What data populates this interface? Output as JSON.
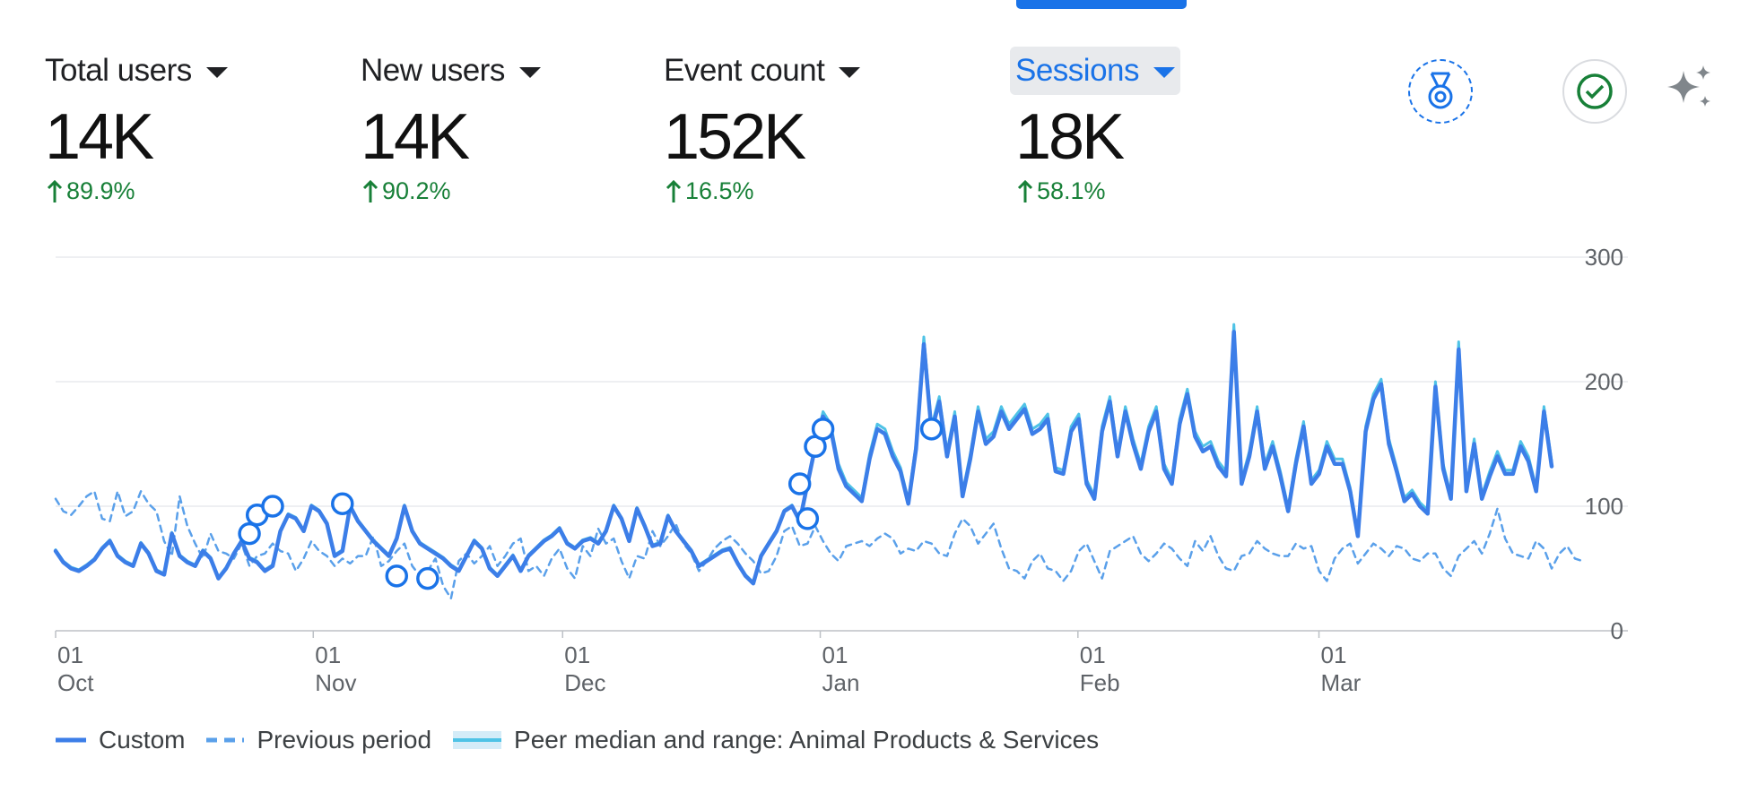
{
  "metrics": [
    {
      "label": "Total users",
      "value": "14K",
      "change": "89.9%"
    },
    {
      "label": "New users",
      "value": "14K",
      "change": "90.2%"
    },
    {
      "label": "Event count",
      "value": "152K",
      "change": "16.5%"
    },
    {
      "label": "Sessions",
      "value": "18K",
      "change": "58.1%"
    }
  ],
  "colors": {
    "custom": "#3c7ee8",
    "previous": "#5aa0ea",
    "peer": "#4fc3e6",
    "up": "#188038",
    "accent": "#1a73e8"
  },
  "icons": [
    "medal-icon",
    "check-circle-icon",
    "sparkle-icon"
  ],
  "legend": {
    "custom": "Custom",
    "previous": "Previous period",
    "peer": "Peer median and range: Animal Products & Services"
  },
  "chart_data": {
    "type": "line",
    "title": "",
    "xlabel": "",
    "ylabel": "",
    "ylim": [
      0,
      300
    ],
    "yticks": [
      "0",
      "100",
      "200",
      "300"
    ],
    "xticks": [
      {
        "day": "01",
        "month": "Oct"
      },
      {
        "day": "01",
        "month": "Nov"
      },
      {
        "day": "01",
        "month": "Dec"
      },
      {
        "day": "01",
        "month": "Jan"
      },
      {
        "day": "01",
        "month": "Feb"
      },
      {
        "day": "01",
        "month": "Mar"
      }
    ],
    "x_start": "2023-10-01",
    "x_end": "2024-03-29",
    "grid": true,
    "legend_position": "bottom-left",
    "series": [
      {
        "name": "Custom",
        "style": "solid",
        "values": [
          64,
          55,
          50,
          48,
          52,
          57,
          66,
          72,
          60,
          55,
          52,
          70,
          62,
          48,
          45,
          78,
          60,
          55,
          52,
          64,
          58,
          42,
          50,
          62,
          72,
          58,
          55,
          48,
          52,
          80,
          93,
          90,
          80,
          100,
          96,
          86,
          60,
          64,
          100,
          88,
          80,
          72,
          66,
          60,
          74,
          100,
          80,
          70,
          66,
          62,
          58,
          52,
          48,
          60,
          72,
          66,
          50,
          44,
          52,
          60,
          48,
          60,
          66,
          72,
          76,
          82,
          70,
          66,
          72,
          74,
          70,
          80,
          100,
          90,
          72,
          98,
          84,
          68,
          70,
          92,
          80,
          72,
          64,
          52,
          56,
          60,
          64,
          66,
          54,
          44,
          38,
          60,
          70,
          80,
          96,
          100,
          88,
          118,
          148,
          172,
          162,
          130,
          116,
          110,
          104,
          138,
          162,
          158,
          140,
          128,
          102,
          146,
          230,
          160,
          184,
          140,
          172,
          108,
          138,
          176,
          150,
          156,
          176,
          162,
          170,
          178,
          158,
          162,
          170,
          128,
          126,
          160,
          170,
          118,
          106,
          160,
          184,
          140,
          176,
          150,
          130,
          160,
          176,
          130,
          118,
          166,
          190,
          156,
          144,
          148,
          132,
          124,
          240,
          118,
          140,
          176,
          130,
          148,
          124,
          96,
          134,
          164,
          118,
          126,
          148,
          134,
          134,
          112,
          76,
          160,
          186,
          198,
          150,
          128,
          104,
          110,
          100,
          94,
          196,
          130,
          106,
          226,
          112,
          150,
          106,
          124,
          140,
          126,
          126,
          148,
          136,
          112,
          176,
          132
        ],
        "point_markers": [
          [
            25,
            78
          ],
          [
            26,
            93
          ],
          [
            28,
            100
          ],
          [
            37,
            102
          ],
          [
            44,
            44
          ],
          [
            48,
            42
          ],
          [
            96,
            118
          ],
          [
            97,
            90
          ],
          [
            98,
            148
          ],
          [
            99,
            162
          ],
          [
            113,
            162
          ]
        ]
      },
      {
        "name": "Previous period",
        "style": "dashed",
        "values": [
          106,
          96,
          93,
          100,
          108,
          112,
          90,
          88,
          112,
          92,
          96,
          112,
          102,
          96,
          72,
          60,
          108,
          84,
          70,
          58,
          78,
          64,
          62,
          58,
          70,
          52,
          60,
          62,
          70,
          64,
          62,
          48,
          58,
          72,
          64,
          60,
          52,
          58,
          54,
          60,
          60,
          76,
          52,
          56,
          64,
          70,
          52,
          44,
          48,
          58,
          36,
          26,
          56,
          62,
          54,
          60,
          68,
          52,
          60,
          70,
          74,
          48,
          52,
          44,
          58,
          66,
          50,
          42,
          68,
          60,
          82,
          70,
          74,
          56,
          42,
          60,
          58,
          80,
          68,
          76,
          86,
          70,
          62,
          48,
          56,
          66,
          72,
          76,
          70,
          62,
          56,
          46,
          48,
          60,
          80,
          84,
          68,
          70,
          84,
          72,
          62,
          56,
          68,
          70,
          72,
          68,
          74,
          78,
          74,
          62,
          66,
          64,
          72,
          70,
          62,
          60,
          78,
          90,
          84,
          70,
          78,
          86,
          66,
          50,
          48,
          42,
          56,
          62,
          50,
          48,
          40,
          48,
          64,
          70,
          56,
          42,
          64,
          68,
          72,
          76,
          62,
          56,
          62,
          70,
          66,
          58,
          52,
          72,
          64,
          76,
          60,
          50,
          48,
          60,
          62,
          72,
          66,
          62,
          60,
          60,
          70,
          66,
          68,
          48,
          40,
          58,
          66,
          70,
          54,
          62,
          70,
          66,
          60,
          68,
          66,
          58,
          56,
          62,
          62,
          50,
          44,
          60,
          66,
          72,
          62,
          78,
          98,
          74,
          62,
          60,
          58,
          72,
          66,
          50,
          62,
          68,
          58,
          56
        ],
        "point_markers": []
      },
      {
        "name": "Peer median and range: Animal Products & Services",
        "style": "solid",
        "values": [
          65,
          56,
          51,
          49,
          53,
          58,
          67,
          73,
          61,
          56,
          53,
          71,
          63,
          49,
          46,
          79,
          61,
          56,
          53,
          65,
          59,
          43,
          51,
          63,
          73,
          59,
          56,
          49,
          53,
          81,
          94,
          91,
          81,
          101,
          97,
          87,
          61,
          65,
          101,
          89,
          81,
          73,
          67,
          61,
          75,
          101,
          81,
          71,
          67,
          63,
          59,
          53,
          49,
          61,
          73,
          67,
          51,
          45,
          53,
          61,
          49,
          61,
          67,
          73,
          77,
          83,
          71,
          67,
          73,
          75,
          71,
          81,
          101,
          91,
          73,
          99,
          85,
          69,
          71,
          93,
          81,
          73,
          65,
          53,
          57,
          61,
          65,
          67,
          55,
          45,
          39,
          61,
          71,
          81,
          97,
          101,
          89,
          119,
          150,
          176,
          166,
          134,
          119,
          113,
          107,
          142,
          166,
          162,
          144,
          131,
          105,
          150,
          236,
          164,
          188,
          144,
          176,
          111,
          142,
          180,
          154,
          160,
          180,
          166,
          174,
          182,
          162,
          166,
          174,
          131,
          129,
          164,
          174,
          121,
          109,
          164,
          188,
          144,
          180,
          154,
          134,
          164,
          180,
          134,
          121,
          170,
          194,
          160,
          148,
          152,
          136,
          128,
          246,
          121,
          144,
          180,
          134,
          152,
          128,
          99,
          138,
          168,
          121,
          129,
          152,
          138,
          138,
          115,
          78,
          164,
          190,
          202,
          154,
          131,
          107,
          113,
          103,
          97,
          200,
          134,
          109,
          232,
          115,
          154,
          109,
          128,
          144,
          129,
          129,
          152,
          140,
          115,
          180,
          136
        ],
        "point_markers": []
      }
    ]
  }
}
